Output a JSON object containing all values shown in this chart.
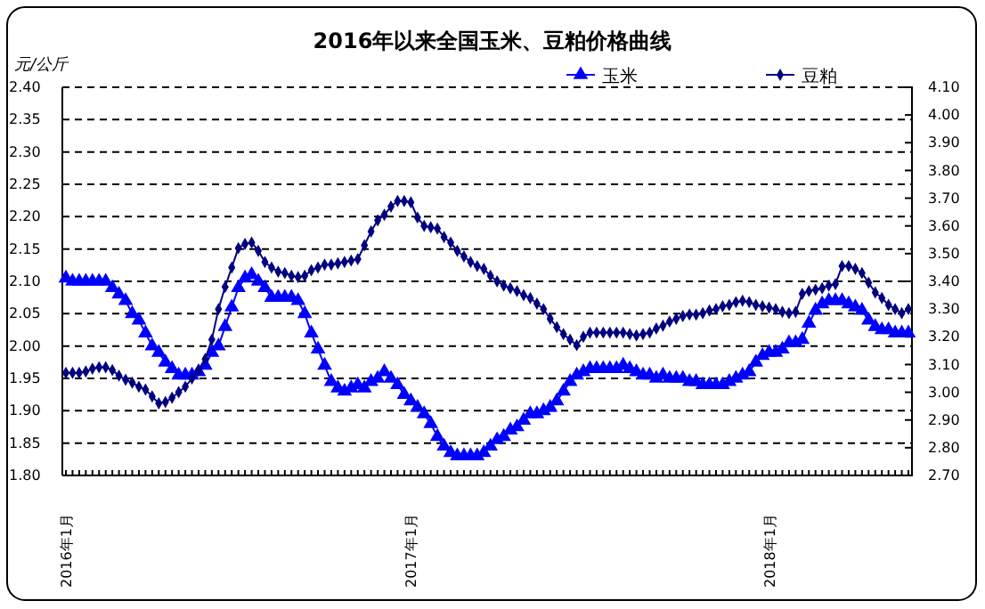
{
  "chart_data": {
    "type": "line",
    "title": "2016年以来全国玉米、豆粕价格曲线",
    "ylabel": "元/公斤",
    "categories": [
      "2016年1月",
      null,
      null,
      null,
      null,
      null,
      null,
      null,
      null,
      null,
      null,
      null,
      null,
      null,
      null,
      null,
      null,
      null,
      null,
      null,
      null,
      null,
      null,
      null,
      null,
      null,
      null,
      null,
      null,
      null,
      null,
      null,
      null,
      null,
      null,
      null,
      null,
      null,
      null,
      null,
      null,
      null,
      null,
      null,
      null,
      null,
      null,
      null,
      null,
      null,
      null,
      null,
      "2017年1月",
      null,
      null,
      null,
      null,
      null,
      null,
      null,
      null,
      null,
      null,
      null,
      null,
      null,
      null,
      null,
      null,
      null,
      null,
      null,
      null,
      null,
      null,
      null,
      null,
      null,
      null,
      null,
      null,
      null,
      null,
      null,
      null,
      null,
      null,
      null,
      null,
      null,
      null,
      null,
      null,
      null,
      null,
      null,
      null,
      null,
      null,
      null,
      null,
      null,
      null,
      null,
      null,
      null,
      "2018年1月",
      null,
      null,
      null,
      null,
      null,
      null,
      null,
      null,
      null,
      null,
      null,
      null,
      null,
      null,
      null,
      null,
      null,
      null,
      null,
      null,
      null
    ],
    "series": [
      {
        "name": "玉米",
        "color": "#0000ff",
        "marker": "triangle",
        "axis": "y",
        "values": [
          2.105,
          2.1,
          2.1,
          2.1,
          2.1,
          2.1,
          2.1,
          2.09,
          2.08,
          2.07,
          2.05,
          2.04,
          2.02,
          2.0,
          1.99,
          1.975,
          1.965,
          1.955,
          1.955,
          1.955,
          1.96,
          1.97,
          1.99,
          2.0,
          2.03,
          2.06,
          2.09,
          2.105,
          2.11,
          2.1,
          2.09,
          2.075,
          2.075,
          2.075,
          2.075,
          2.07,
          2.05,
          2.02,
          1.995,
          1.97,
          1.945,
          1.935,
          1.93,
          1.935,
          1.94,
          1.935,
          1.945,
          1.95,
          1.96,
          1.95,
          1.94,
          1.925,
          1.915,
          1.905,
          1.895,
          1.88,
          1.86,
          1.845,
          1.835,
          1.83,
          1.83,
          1.83,
          1.83,
          1.835,
          1.845,
          1.855,
          1.86,
          1.87,
          1.875,
          1.885,
          1.895,
          1.895,
          1.9,
          1.905,
          1.915,
          1.93,
          1.945,
          1.955,
          1.96,
          1.965,
          1.965,
          1.965,
          1.965,
          1.965,
          1.97,
          1.965,
          1.96,
          1.955,
          1.955,
          1.95,
          1.955,
          1.95,
          1.95,
          1.95,
          1.945,
          1.945,
          1.94,
          1.94,
          1.94,
          1.94,
          1.945,
          1.95,
          1.955,
          1.96,
          1.975,
          1.985,
          1.99,
          1.99,
          1.995,
          2.005,
          2.005,
          2.01,
          2.035,
          2.055,
          2.065,
          2.07,
          2.07,
          2.07,
          2.065,
          2.06,
          2.055,
          2.04,
          2.03,
          2.025,
          2.025,
          2.02,
          2.02,
          2.02
        ]
      },
      {
        "name": "豆粕",
        "color": "#000080",
        "marker": "diamond",
        "axis": "y2",
        "values": [
          3.07,
          3.07,
          3.07,
          3.075,
          3.085,
          3.09,
          3.09,
          3.08,
          3.06,
          3.045,
          3.035,
          3.02,
          3.01,
          2.985,
          2.96,
          2.965,
          2.98,
          3.0,
          3.02,
          3.05,
          3.08,
          3.12,
          3.19,
          3.3,
          3.38,
          3.45,
          3.52,
          3.535,
          3.54,
          3.51,
          3.47,
          3.45,
          3.435,
          3.43,
          3.42,
          3.415,
          3.42,
          3.44,
          3.45,
          3.46,
          3.46,
          3.465,
          3.47,
          3.475,
          3.48,
          3.53,
          3.58,
          3.62,
          3.64,
          3.67,
          3.69,
          3.69,
          3.685,
          3.63,
          3.6,
          3.595,
          3.59,
          3.56,
          3.54,
          3.51,
          3.49,
          3.47,
          3.455,
          3.445,
          3.42,
          3.4,
          3.385,
          3.375,
          3.365,
          3.35,
          3.34,
          3.32,
          3.3,
          3.265,
          3.235,
          3.21,
          3.19,
          3.17,
          3.2,
          3.215,
          3.215,
          3.215,
          3.215,
          3.215,
          3.215,
          3.21,
          3.205,
          3.21,
          3.215,
          3.23,
          3.24,
          3.255,
          3.265,
          3.275,
          3.28,
          3.28,
          3.285,
          3.295,
          3.3,
          3.31,
          3.315,
          3.325,
          3.33,
          3.325,
          3.315,
          3.31,
          3.305,
          3.3,
          3.29,
          3.285,
          3.29,
          3.355,
          3.365,
          3.37,
          3.375,
          3.385,
          3.39,
          3.455,
          3.455,
          3.445,
          3.43,
          3.395,
          3.36,
          3.34,
          3.315,
          3.3,
          3.285,
          3.3
        ]
      }
    ],
    "ylim": [
      1.8,
      2.4
    ],
    "yticks": [
      {
        "value": 1.8,
        "label": "1.80"
      },
      {
        "value": 1.85,
        "label": "1.85"
      },
      {
        "value": 1.9,
        "label": "1.90"
      },
      {
        "value": 1.95,
        "label": "1.95"
      },
      {
        "value": 2.0,
        "label": "2.00"
      },
      {
        "value": 2.05,
        "label": "2.05"
      },
      {
        "value": 2.1,
        "label": "2.10"
      },
      {
        "value": 2.15,
        "label": "2.15"
      },
      {
        "value": 2.2,
        "label": "2.20"
      },
      {
        "value": 2.25,
        "label": "2.25"
      },
      {
        "value": 2.3,
        "label": "2.30"
      },
      {
        "value": 2.35,
        "label": "2.35"
      },
      {
        "value": 2.4,
        "label": "2.40"
      }
    ],
    "y2lim": [
      2.7,
      4.1
    ],
    "y2ticks": [
      {
        "value": 2.7,
        "label": "2.70"
      },
      {
        "value": 2.8,
        "label": "2.80"
      },
      {
        "value": 2.9,
        "label": "2.90"
      },
      {
        "value": 3.0,
        "label": "3.00"
      },
      {
        "value": 3.1,
        "label": "3.10"
      },
      {
        "value": 3.2,
        "label": "3.20"
      },
      {
        "value": 3.3,
        "label": "3.30"
      },
      {
        "value": 3.4,
        "label": "3.40"
      },
      {
        "value": 3.5,
        "label": "3.50"
      },
      {
        "value": 3.6,
        "label": "3.60"
      },
      {
        "value": 3.7,
        "label": "3.70"
      },
      {
        "value": 3.8,
        "label": "3.80"
      },
      {
        "value": 3.9,
        "label": "3.90"
      },
      {
        "value": 4.0,
        "label": "4.00"
      },
      {
        "value": 4.1,
        "label": "4.10"
      }
    ],
    "grid": "y",
    "legend": "top right",
    "line_style": "solid"
  }
}
